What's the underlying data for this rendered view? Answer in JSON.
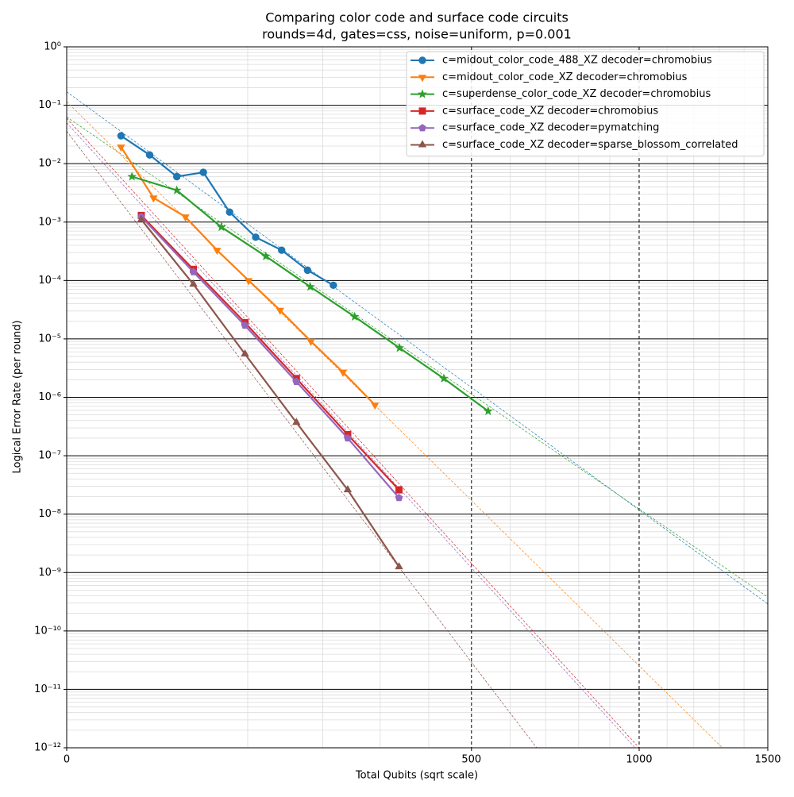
{
  "chart_data": {
    "type": "line",
    "title": "Comparing color code and surface code circuits",
    "subtitle": "rounds=4d, gates=css, noise=uniform, p=0.001",
    "x_label": "Total Qubits (sqrt scale)",
    "y_label": "Logical Error Rate (per round)",
    "xscale": "sqrt",
    "yscale": "log",
    "grid": true,
    "legend": "upper right",
    "xlim": [
      0,
      1500
    ],
    "xticks": [
      0,
      500,
      1000,
      1500
    ],
    "ylim": [
      1e-12,
      1
    ],
    "yticks": [
      {
        "value": 1e-12,
        "label": "10⁻¹²"
      },
      {
        "value": 1e-11,
        "label": "10⁻¹¹"
      },
      {
        "value": 1e-10,
        "label": "10⁻¹⁰"
      },
      {
        "value": 1e-09,
        "label": "10⁻⁹"
      },
      {
        "value": 1e-08,
        "label": "10⁻⁸"
      },
      {
        "value": 1e-07,
        "label": "10⁻⁷"
      },
      {
        "value": 1e-06,
        "label": "10⁻⁶"
      },
      {
        "value": 1e-05,
        "label": "10⁻⁵"
      },
      {
        "value": 0.0001,
        "label": "10⁻⁴"
      },
      {
        "value": 0.001,
        "label": "10⁻³"
      },
      {
        "value": 0.01,
        "label": "10⁻²"
      },
      {
        "value": 0.1,
        "label": "10⁻¹"
      },
      {
        "value": 1,
        "label": "10⁰"
      }
    ],
    "series": [
      {
        "name": "c=midout_color_code_488_XZ decoder=chromobius",
        "color": "#1f77b4",
        "marker": "circle",
        "x": [
          9,
          21,
          37,
          57,
          81,
          109,
          141,
          177,
          217
        ],
        "values": [
          0.03,
          0.0141,
          0.006,
          0.0071,
          0.00148,
          0.00055,
          0.00033,
          0.00015,
          8.3e-05
        ],
        "fit": {
          "x": [
            0,
            1500
          ],
          "values": [
            0.17,
            2.9e-10
          ]
        }
      },
      {
        "name": "c=midout_color_code_XZ decoder=chromobius",
        "color": "#ff7f0e",
        "marker": "triangle-down",
        "x": [
          9,
          23,
          43,
          69,
          101,
          139,
          182,
          233,
          290
        ],
        "values": [
          0.0193,
          0.0026,
          0.00123,
          0.00033,
          0.0001,
          3.1e-05,
          9.1e-06,
          2.7e-06,
          7.4e-07
        ],
        "fit": {
          "x": [
            0,
            1312
          ],
          "values": [
            0.115,
            1e-12
          ]
        }
      },
      {
        "name": "c=superdense_color_code_XZ decoder=chromobius",
        "color": "#2ca02c",
        "marker": "star",
        "x": [
          13,
          37,
          73,
          121,
          181,
          253,
          338,
          434,
          542
        ],
        "values": [
          0.006,
          0.0035,
          0.00082,
          0.00026,
          7.8e-05,
          2.4e-05,
          7e-06,
          2.1e-06,
          5.8e-07
        ],
        "fit": {
          "x": [
            0,
            1500
          ],
          "values": [
            0.063,
            3.8e-10
          ]
        }
      },
      {
        "name": "c=surface_code_XZ decoder=chromobius",
        "color": "#d62728",
        "marker": "square",
        "x": [
          17,
          49,
          97,
          161,
          241,
          337
        ],
        "values": [
          0.0013,
          0.000155,
          1.9e-05,
          2.1e-06,
          2.3e-07,
          2.6e-08
        ],
        "fit": {
          "x": [
            0,
            1000
          ],
          "values": [
            0.06,
            1e-12
          ]
        }
      },
      {
        "name": "c=surface_code_XZ decoder=pymatching",
        "color": "#9467bd",
        "marker": "pentagon",
        "x": [
          17,
          49,
          97,
          161,
          241,
          337
        ],
        "values": [
          0.00123,
          0.00014,
          1.7e-05,
          1.85e-06,
          2e-07,
          1.9e-08
        ],
        "fit": {
          "x": [
            0,
            986
          ],
          "values": [
            0.05,
            1e-12
          ]
        }
      },
      {
        "name": "c=surface_code_XZ decoder=sparse_blossom_correlated",
        "color": "#8c564b",
        "marker": "triangle-up",
        "x": [
          17,
          49,
          97,
          161,
          241,
          337
        ],
        "values": [
          0.0011,
          8.6e-05,
          5.5e-06,
          3.7e-07,
          2.6e-08,
          1.25e-09
        ],
        "fit": {
          "x": [
            0,
            674
          ],
          "values": [
            0.036,
            1e-12
          ]
        }
      }
    ]
  }
}
